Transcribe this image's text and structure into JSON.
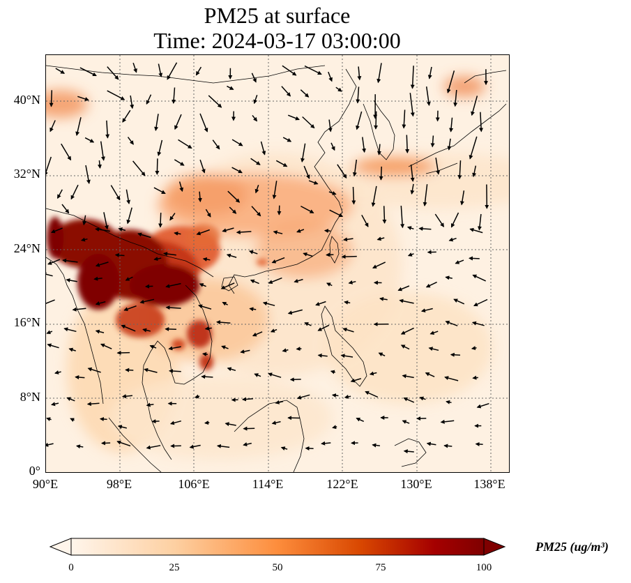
{
  "title": {
    "line1": "PM25 at surface",
    "line2": "Time: 2024-03-17 03:00:00"
  },
  "map": {
    "lon_range": [
      90,
      140
    ],
    "lat_range": [
      0,
      45
    ],
    "lat_ticks": [
      "0°",
      "8°N",
      "16°N",
      "24°N",
      "32°N",
      "40°N"
    ],
    "lat_values": [
      0,
      8,
      16,
      24,
      32,
      40
    ],
    "lon_ticks": [
      "90°E",
      "98°E",
      "106°E",
      "114°E",
      "122°E",
      "130°E",
      "138°E"
    ],
    "lon_values": [
      90,
      98,
      106,
      114,
      122,
      130,
      138
    ],
    "gridlines": true,
    "field": "PM25",
    "wind_vectors": true
  },
  "colorbar": {
    "ticks": [
      "0",
      "25",
      "50",
      "75",
      "100"
    ],
    "tick_values": [
      0,
      25,
      50,
      75,
      100
    ],
    "range": [
      0,
      100
    ],
    "extend": "both",
    "label": "PM25 (ug/m³)",
    "colors": [
      "#fff5eb",
      "#fdd0a2",
      "#fd8d3c",
      "#d94801",
      "#a50000",
      "#7f0000"
    ]
  }
}
